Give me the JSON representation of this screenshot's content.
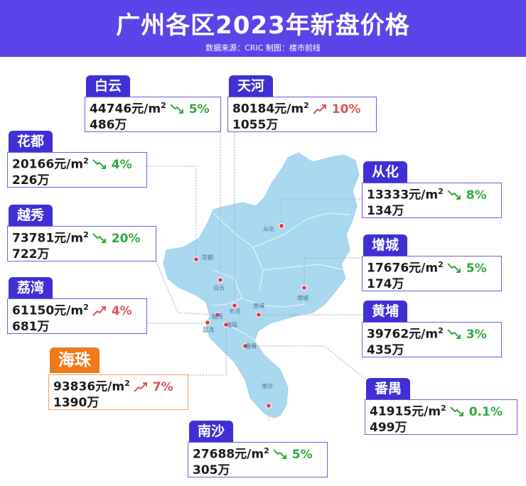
{
  "title": "广州各区2023年新盘价格",
  "source": "数据来源：CRIC 制图：楼市前线",
  "colors": {
    "header": "#5b45e8",
    "tag": "#3f2fd4",
    "tag_highlight": "#f07a1a",
    "map_fill": "#a8d8f0",
    "down": "#2eaa3c",
    "up": "#e05252",
    "dot": "#e0383e"
  },
  "map_labels": {
    "conghua": "从化",
    "huadu": "花都",
    "baiyun": "白云",
    "zengcheng": "增城",
    "tianhe": "天河",
    "huangpu": "黄埔",
    "liwan": "荔湾",
    "haizhu": "海珠",
    "yuexiu": "越秀",
    "panyu": "番禺",
    "nansha": "南沙"
  },
  "districts": {
    "baiyun": {
      "name": "白云",
      "price": "44746元/m",
      "sup": "2",
      "change": "5%",
      "trend": "down",
      "total": "486万"
    },
    "tianhe": {
      "name": "天河",
      "price": "80184元/m",
      "sup": "2",
      "change": "10%",
      "trend": "up",
      "total": "1055万"
    },
    "huadu": {
      "name": "花都",
      "price": "20166元/m",
      "sup": "2",
      "change": "4%",
      "trend": "down",
      "total": "226万"
    },
    "conghua": {
      "name": "从化",
      "price": "13333元/m",
      "sup": "2",
      "change": "8%",
      "trend": "down",
      "total": "134万"
    },
    "yuexiu": {
      "name": "越秀",
      "price": "73781元/m",
      "sup": "2",
      "change": "20%",
      "trend": "down",
      "total": "722万"
    },
    "zengcheng": {
      "name": "增城",
      "price": "17676元/m",
      "sup": "2",
      "change": "5%",
      "trend": "down",
      "total": "174万"
    },
    "liwan": {
      "name": "荔湾",
      "price": "61150元/m",
      "sup": "2",
      "change": "4%",
      "trend": "up",
      "total": "681万"
    },
    "huangpu": {
      "name": "黄埔",
      "price": "39762元/m",
      "sup": "2",
      "change": "3%",
      "trend": "down",
      "total": "435万"
    },
    "haizhu": {
      "name": "海珠",
      "price": "93836元/m",
      "sup": "2",
      "change": "7%",
      "trend": "up",
      "total": "1390万"
    },
    "panyu": {
      "name": "番禺",
      "price": "41915元/m",
      "sup": "2",
      "change": "0.1%",
      "trend": "down",
      "total": "499万"
    },
    "nansha": {
      "name": "南沙",
      "price": "27688元/m",
      "sup": "2",
      "change": "5%",
      "trend": "down",
      "total": "305万"
    }
  }
}
